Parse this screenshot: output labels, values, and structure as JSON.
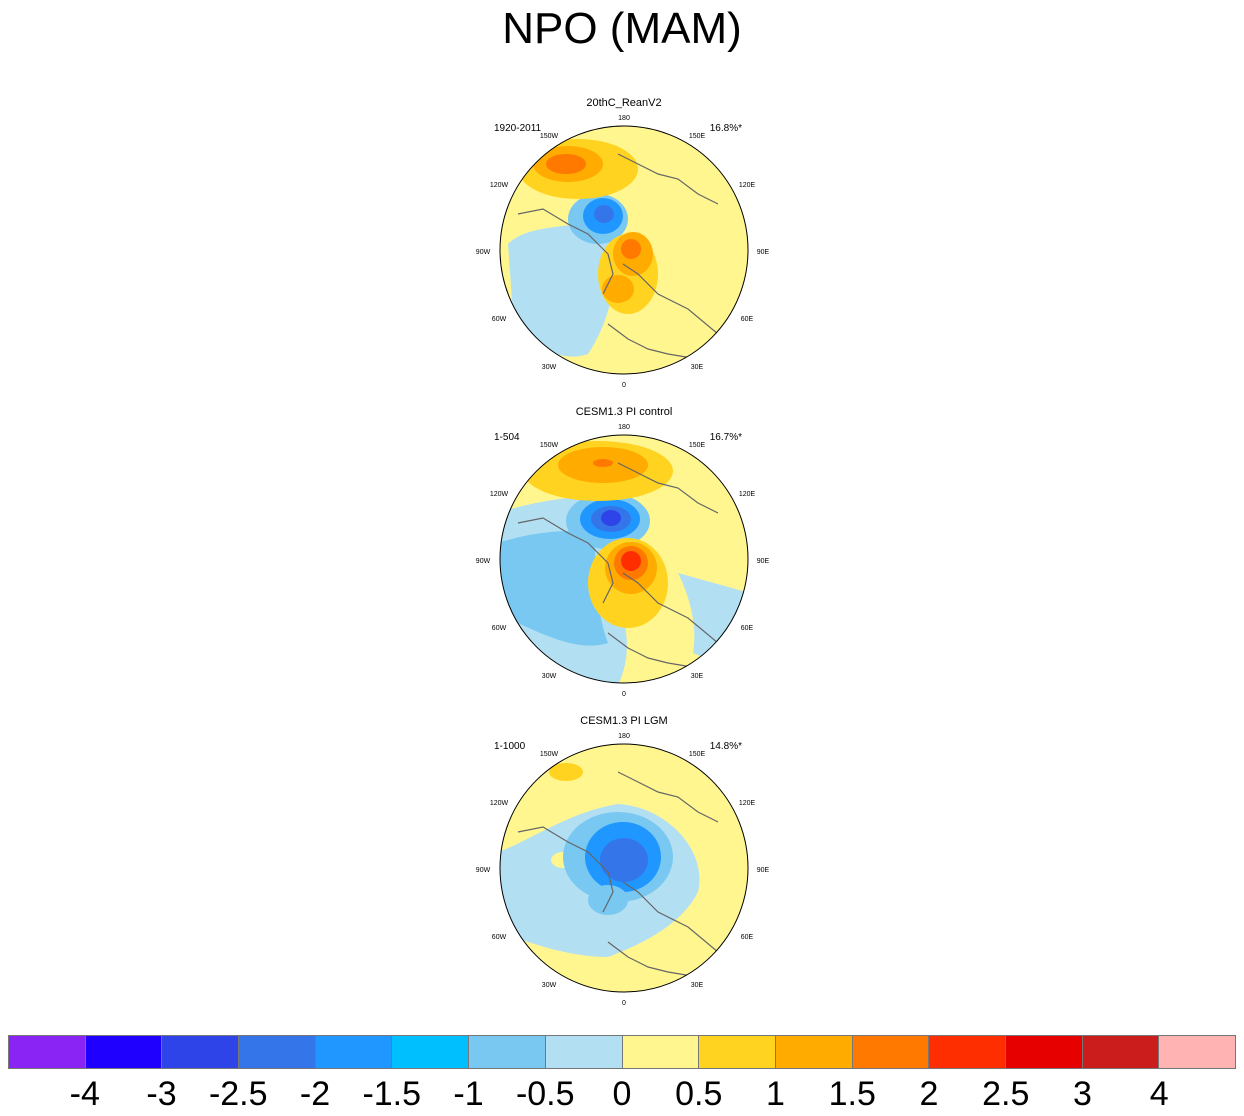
{
  "title": "NPO (MAM)",
  "lon_labels": {
    "l180": "180",
    "l150w": "150W",
    "l150e": "150E",
    "l120w": "120W",
    "l120e": "120E",
    "l90w": "90W",
    "l90e": "90E",
    "l60w": "60W",
    "l60e": "60E",
    "l30w": "30W",
    "l30e": "30E",
    "l0": "0"
  },
  "panels": [
    {
      "title": "20thC_ReanV2",
      "period": "1920-2011",
      "percent": "16.8%*"
    },
    {
      "title": "CESM1.3 PI control",
      "period": "1-504",
      "percent": "16.7%*"
    },
    {
      "title": "CESM1.3 PI LGM",
      "period": "1-1000",
      "percent": "14.8%*"
    }
  ],
  "colorbar": {
    "colors": [
      "#8a24f5",
      "#1f00ff",
      "#2e44e8",
      "#3476ea",
      "#1f97ff",
      "#00bfff",
      "#78c8f2",
      "#b3dff2",
      "#fff68f",
      "#ffd320",
      "#ffab00",
      "#ff7800",
      "#ff2e00",
      "#e60000",
      "#cc1d1d",
      "#ffb3b3"
    ],
    "labels": [
      "-4",
      "-3",
      "-2.5",
      "-2",
      "-1.5",
      "-1",
      "-0.5",
      "0",
      "0.5",
      "1",
      "1.5",
      "2",
      "2.5",
      "3",
      "4"
    ]
  }
}
